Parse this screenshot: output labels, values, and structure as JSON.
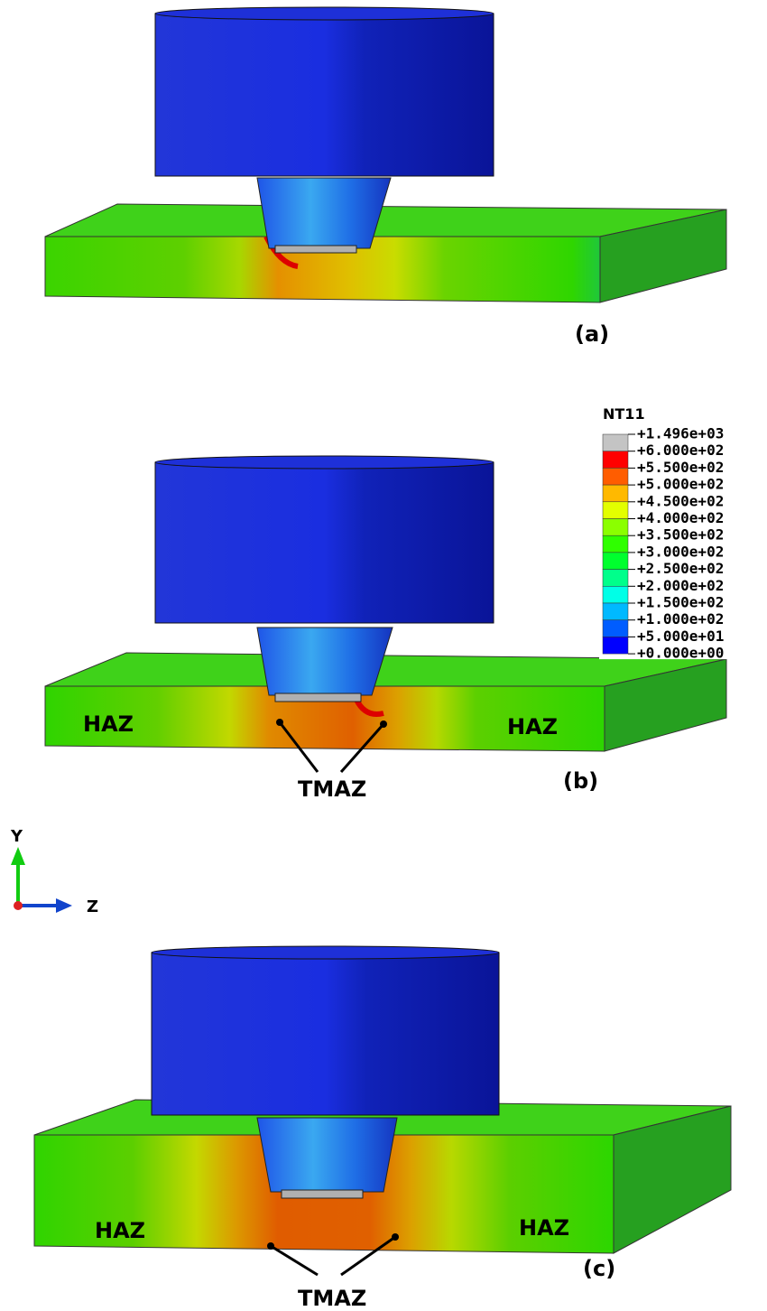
{
  "panels": [
    {
      "label": "(a)"
    },
    {
      "label": "(b)",
      "zones": {
        "left": "HAZ",
        "right": "HAZ",
        "center": "TMAZ"
      }
    },
    {
      "label": "(c)",
      "zones": {
        "left": "HAZ",
        "right": "HAZ",
        "center": "TMAZ"
      }
    }
  ],
  "legend": {
    "title": "NT11",
    "labels": [
      "+1.496e+03",
      "+6.000e+02",
      "+5.500e+02",
      "+5.000e+02",
      "+4.500e+02",
      "+4.000e+02",
      "+3.500e+02",
      "+3.000e+02",
      "+2.500e+02",
      "+2.000e+02",
      "+1.500e+02",
      "+1.000e+02",
      "+5.000e+01",
      "+0.000e+00"
    ],
    "colors": [
      "#c4c4c4",
      "#ff0000",
      "#ff5d00",
      "#ffb900",
      "#e3ff00",
      "#8bff00",
      "#2fff00",
      "#00ff2e",
      "#00ff8b",
      "#00ffe7",
      "#00b9ff",
      "#005dff",
      "#0000ff"
    ]
  },
  "triad": {
    "y": "Y",
    "z": "Z"
  }
}
